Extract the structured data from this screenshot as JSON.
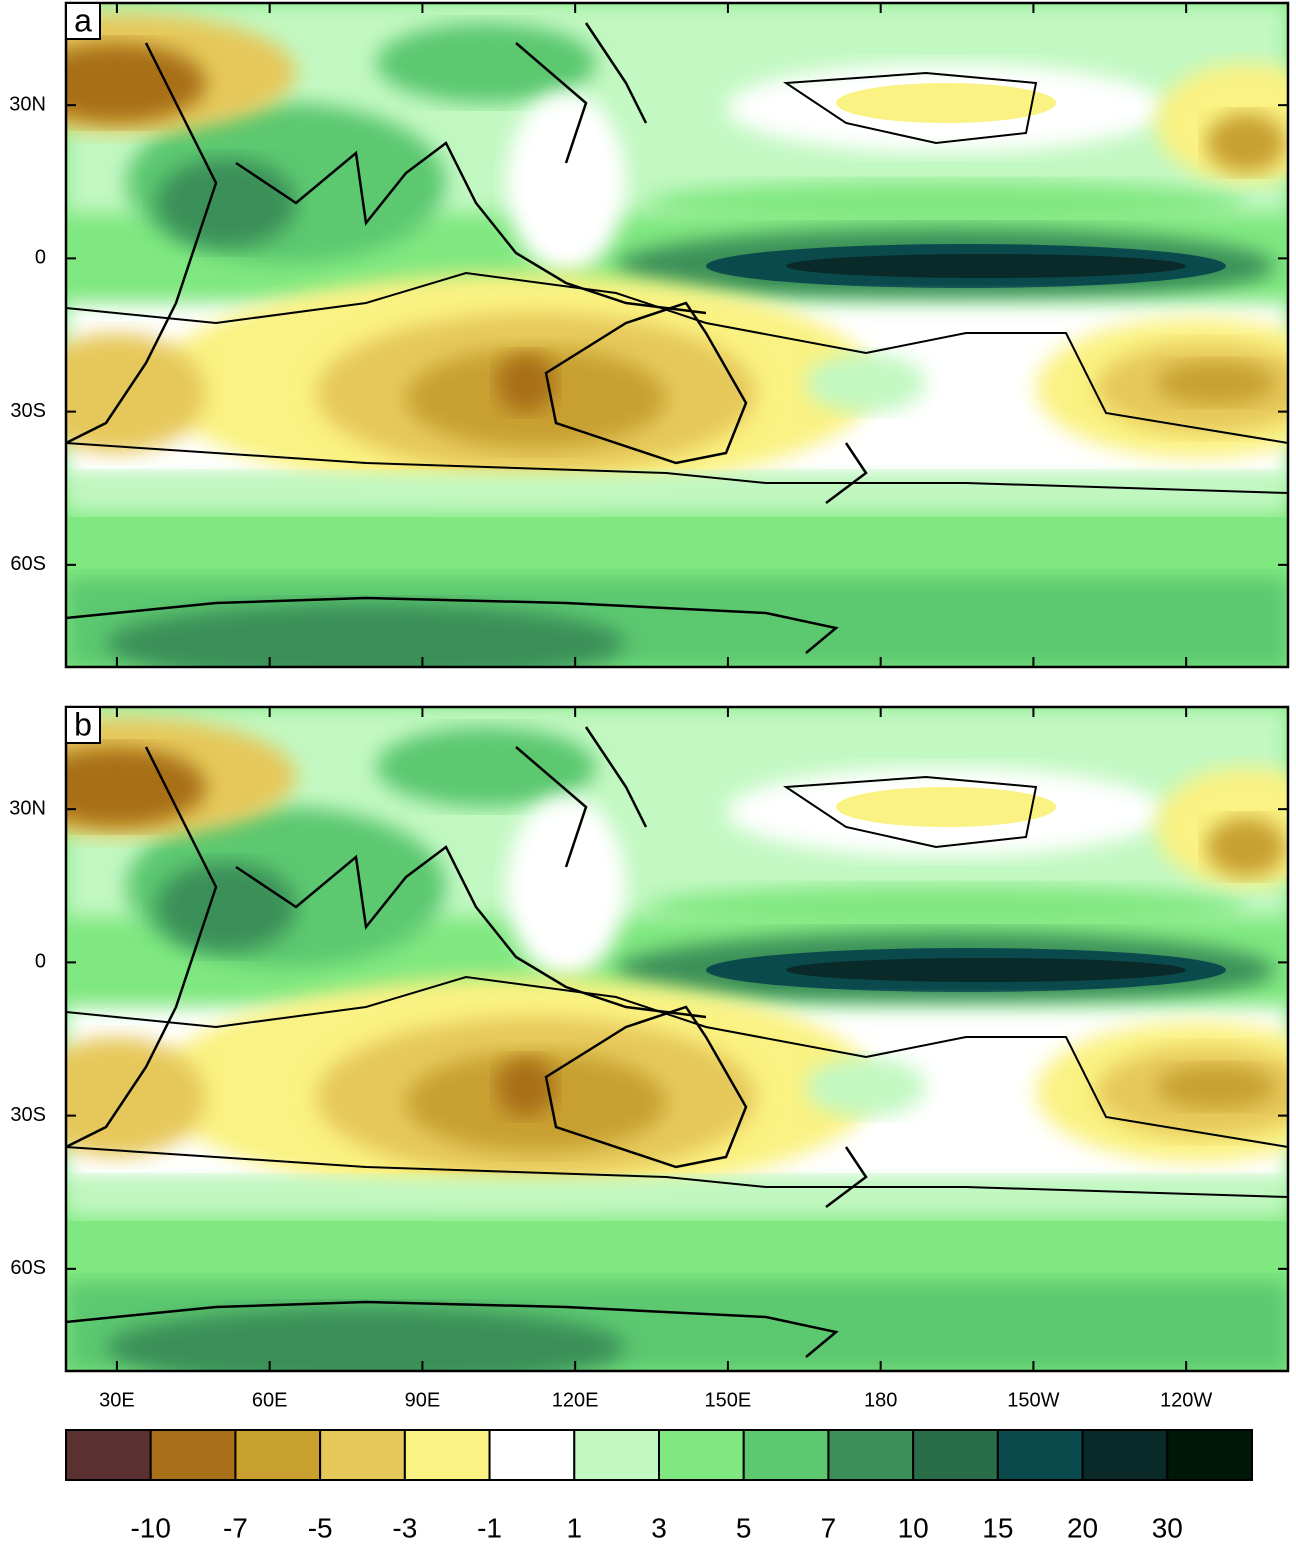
{
  "panels": [
    {
      "label": "a"
    },
    {
      "label": "b"
    }
  ],
  "map": {
    "xlim": [
      20,
      260
    ],
    "ylim": [
      -80,
      50
    ],
    "xticks": [
      {
        "value": 30,
        "label": "30E"
      },
      {
        "value": 60,
        "label": "60E"
      },
      {
        "value": 90,
        "label": "90E"
      },
      {
        "value": 120,
        "label": "120E"
      },
      {
        "value": 150,
        "label": "150E"
      },
      180,
      {
        "value": 210,
        "label": "150W"
      },
      {
        "value": 240,
        "label": "120W"
      }
    ],
    "yticks": [
      {
        "value": 30,
        "label": "30N"
      },
      0,
      {
        "value": -30,
        "label": "30S"
      },
      {
        "value": -60,
        "label": "60S"
      }
    ]
  },
  "colorbar": {
    "levels": [
      -10,
      -7,
      -5,
      -3,
      -1,
      1,
      3,
      5,
      7,
      10,
      15,
      20,
      30
    ],
    "colors": [
      "#5a3030",
      "#a87018",
      "#c8a030",
      "#e6c85a",
      "#faf282",
      "#ffffff",
      "#c2f8c2",
      "#80e880",
      "#5cc870",
      "#3a9058",
      "#286c48",
      "#0a4a4c",
      "#0a2a2a",
      "#001808"
    ]
  }
}
